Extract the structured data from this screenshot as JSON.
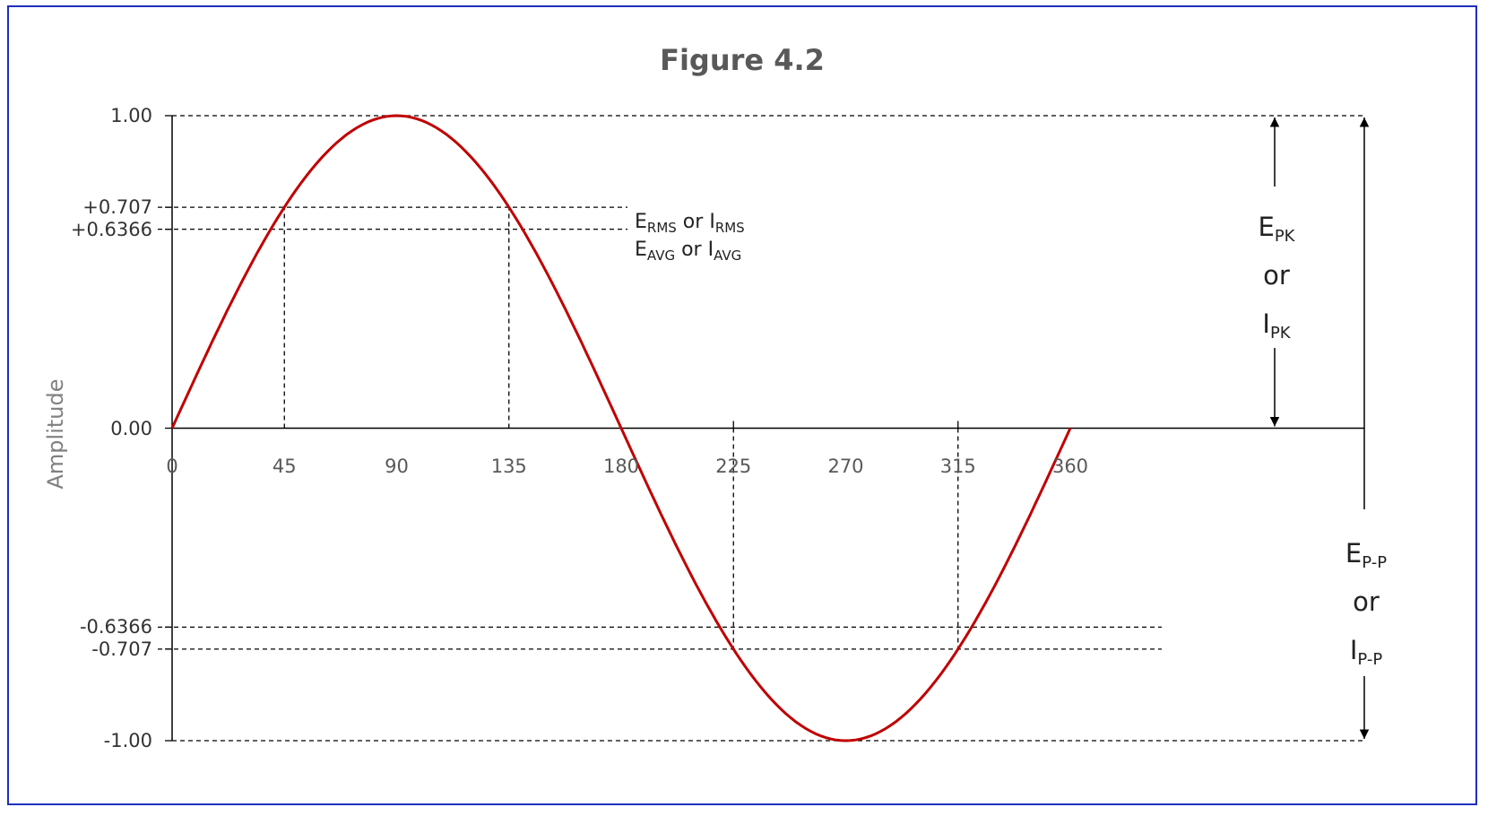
{
  "chart_data": {
    "type": "line",
    "title": "Figure 4.2",
    "xlabel": "",
    "ylabel": "Amplitude",
    "xlim": [
      0,
      360
    ],
    "ylim": [
      -1,
      1
    ],
    "x_ticks": [
      "0",
      "45",
      "90",
      "135",
      "180",
      "225",
      "270",
      "315",
      "360"
    ],
    "x_tick_values": [
      0,
      45,
      90,
      135,
      180,
      225,
      270,
      315,
      360
    ],
    "y_ticks": [
      {
        "label": "1.00",
        "value": 1.0
      },
      {
        "label": "+0.707",
        "value": 0.707
      },
      {
        "label": "+0.6366",
        "value": 0.6366
      },
      {
        "label": "0.00",
        "value": 0.0
      },
      {
        "label": "-0.6366",
        "value": -0.6366
      },
      {
        "label": "-0.707",
        "value": -0.707
      },
      {
        "label": "-1.00",
        "value": -1.0
      }
    ],
    "series": [
      {
        "function": "sine",
        "x": [
          0,
          45,
          90,
          135,
          180,
          225,
          270,
          315,
          360
        ],
        "y": [
          0,
          0.707,
          1.0,
          0.707,
          0,
          -0.707,
          -1.0,
          -0.707,
          0
        ],
        "color": "#c00000"
      }
    ],
    "reference_lines": [
      {
        "axis": "y",
        "value": 1.0
      },
      {
        "axis": "y",
        "value": 0.707
      },
      {
        "axis": "y",
        "value": 0.6366
      },
      {
        "axis": "y",
        "value": -0.6366
      },
      {
        "axis": "y",
        "value": -0.707
      },
      {
        "axis": "y",
        "value": -1.0
      },
      {
        "axis": "x",
        "value": 45
      },
      {
        "axis": "x",
        "value": 135
      },
      {
        "axis": "x",
        "value": 225
      },
      {
        "axis": "x",
        "value": 315
      }
    ],
    "annotations": {
      "rms": {
        "e": "E",
        "e_sub": "RMS",
        "or": "or",
        "i": "I",
        "i_sub": "RMS"
      },
      "avg": {
        "e": "E",
        "e_sub": "AVG",
        "or": "or",
        "i": "I",
        "i_sub": "AVG"
      },
      "peak": {
        "e": "E",
        "e_sub": "PK",
        "or": "or",
        "i": "I",
        "i_sub": "PK"
      },
      "peak_to_peak": {
        "e": "E",
        "e_sub": "P-P",
        "or": "or",
        "i": "I",
        "i_sub": "P-P"
      }
    },
    "grid": false,
    "legend": "none",
    "colors": {
      "curve": "#c00000",
      "frame": "#1f2fbf"
    }
  }
}
